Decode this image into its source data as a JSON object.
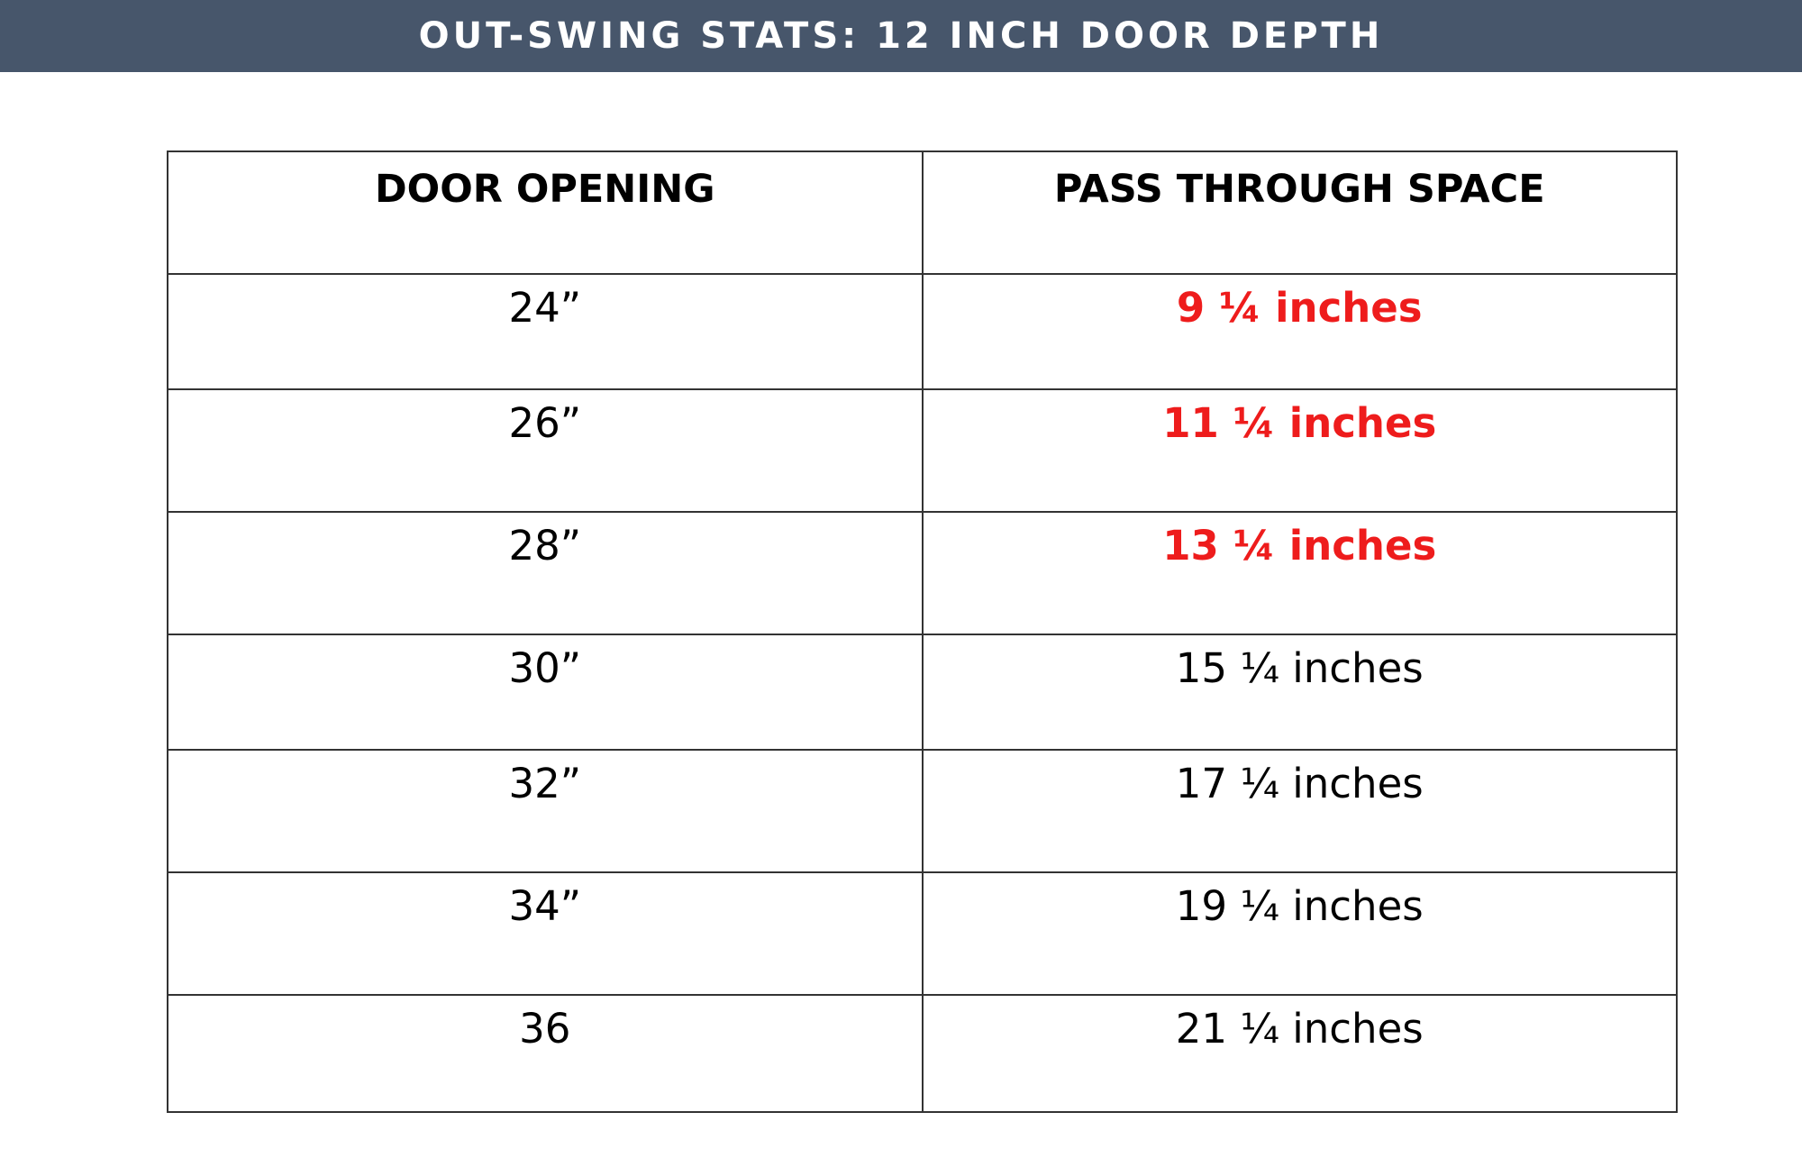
{
  "title": "OUT-SWING STATS: 12 INCH DOOR DEPTH",
  "table": {
    "headers": [
      "DOOR OPENING",
      "PASS THROUGH SPACE"
    ],
    "rows": [
      {
        "door_opening": "24”",
        "pass_through": "9 ¼ inches",
        "highlight": true
      },
      {
        "door_opening": "26”",
        "pass_through": "11 ¼ inches",
        "highlight": true
      },
      {
        "door_opening": "28”",
        "pass_through": "13 ¼ inches",
        "highlight": true
      },
      {
        "door_opening": "30”",
        "pass_through": "15 ¼ inches",
        "highlight": false
      },
      {
        "door_opening": "32”",
        "pass_through": "17 ¼ inches",
        "highlight": false
      },
      {
        "door_opening": "34”",
        "pass_through": "19 ¼ inches",
        "highlight": false
      },
      {
        "door_opening": "36",
        "pass_through": "21 ¼ inches",
        "highlight": false
      }
    ]
  },
  "colors": {
    "banner": "#47566b",
    "highlight_text": "#ee1c1c"
  }
}
